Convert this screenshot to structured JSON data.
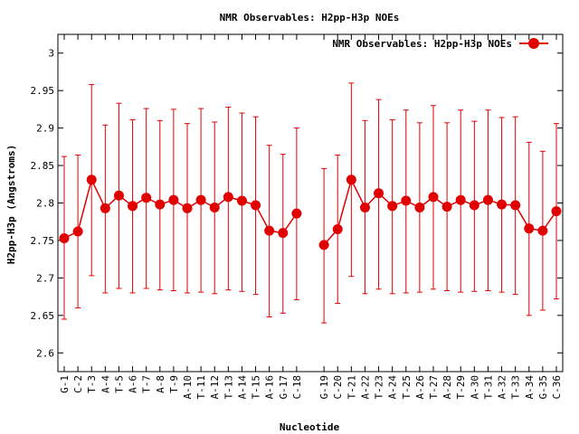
{
  "chart_data": {
    "type": "line",
    "title": "NMR Observables: H2pp-H3p NOEs",
    "xlabel": "Nucleotide",
    "ylabel": "H2pp-H3p (Angstroms)",
    "ylim": [
      2.575,
      3.025
    ],
    "yticks": [
      "2.6",
      "2.65",
      "2.7",
      "2.75",
      "2.8",
      "2.85",
      "2.9",
      "2.95",
      "3"
    ],
    "legend": {
      "position": "top-right"
    },
    "color": "#e00000",
    "categories": [
      "G-1",
      "C-2",
      "T-3",
      "A-4",
      "T-5",
      "A-6",
      "T-7",
      "A-8",
      "T-9",
      "A-10",
      "T-11",
      "A-12",
      "T-13",
      "A-14",
      "T-15",
      "A-16",
      "G-17",
      "C-18",
      "G-19",
      "C-20",
      "T-21",
      "A-22",
      "T-23",
      "A-24",
      "T-25",
      "A-26",
      "T-27",
      "A-28",
      "T-29",
      "A-30",
      "T-31",
      "A-32",
      "T-33",
      "A-34",
      "G-35",
      "C-36"
    ],
    "series": [
      {
        "name": "NMR Observables: H2pp-H3p NOEs",
        "segments": [
          {
            "x": [
              "G-1",
              "C-2",
              "T-3",
              "A-4",
              "T-5",
              "A-6",
              "T-7",
              "A-8",
              "T-9",
              "A-10",
              "T-11",
              "A-12",
              "T-13",
              "A-14",
              "T-15",
              "A-16",
              "G-17",
              "C-18"
            ],
            "y": [
              2.753,
              2.762,
              2.831,
              2.793,
              2.81,
              2.796,
              2.807,
              2.798,
              2.804,
              2.793,
              2.804,
              2.794,
              2.808,
              2.803,
              2.797,
              2.763,
              2.76,
              2.786
            ],
            "ylow": [
              2.645,
              2.66,
              2.703,
              2.68,
              2.686,
              2.68,
              2.686,
              2.684,
              2.683,
              2.68,
              2.681,
              2.679,
              2.684,
              2.682,
              2.678,
              2.648,
              2.653,
              2.671
            ],
            "yhigh": [
              2.862,
              2.864,
              2.958,
              2.904,
              2.933,
              2.911,
              2.926,
              2.91,
              2.925,
              2.906,
              2.926,
              2.908,
              2.928,
              2.92,
              2.915,
              2.877,
              2.865,
              2.9
            ]
          },
          {
            "x": [
              "G-19",
              "C-20",
              "T-21",
              "A-22",
              "T-23",
              "A-24",
              "T-25",
              "A-26",
              "T-27",
              "A-28",
              "T-29",
              "A-30",
              "T-31",
              "A-32",
              "T-33",
              "A-34",
              "G-35",
              "C-36"
            ],
            "y": [
              2.744,
              2.765,
              2.831,
              2.794,
              2.813,
              2.796,
              2.803,
              2.794,
              2.808,
              2.795,
              2.804,
              2.797,
              2.804,
              2.798,
              2.797,
              2.766,
              2.763,
              2.789
            ],
            "ylow": [
              2.64,
              2.666,
              2.702,
              2.679,
              2.685,
              2.679,
              2.68,
              2.681,
              2.685,
              2.683,
              2.681,
              2.682,
              2.683,
              2.681,
              2.678,
              2.65,
              2.657,
              2.672
            ],
            "yhigh": [
              2.846,
              2.864,
              2.96,
              2.91,
              2.938,
              2.911,
              2.924,
              2.907,
              2.93,
              2.907,
              2.924,
              2.909,
              2.924,
              2.914,
              2.915,
              2.881,
              2.869,
              2.906
            ]
          }
        ]
      }
    ]
  }
}
